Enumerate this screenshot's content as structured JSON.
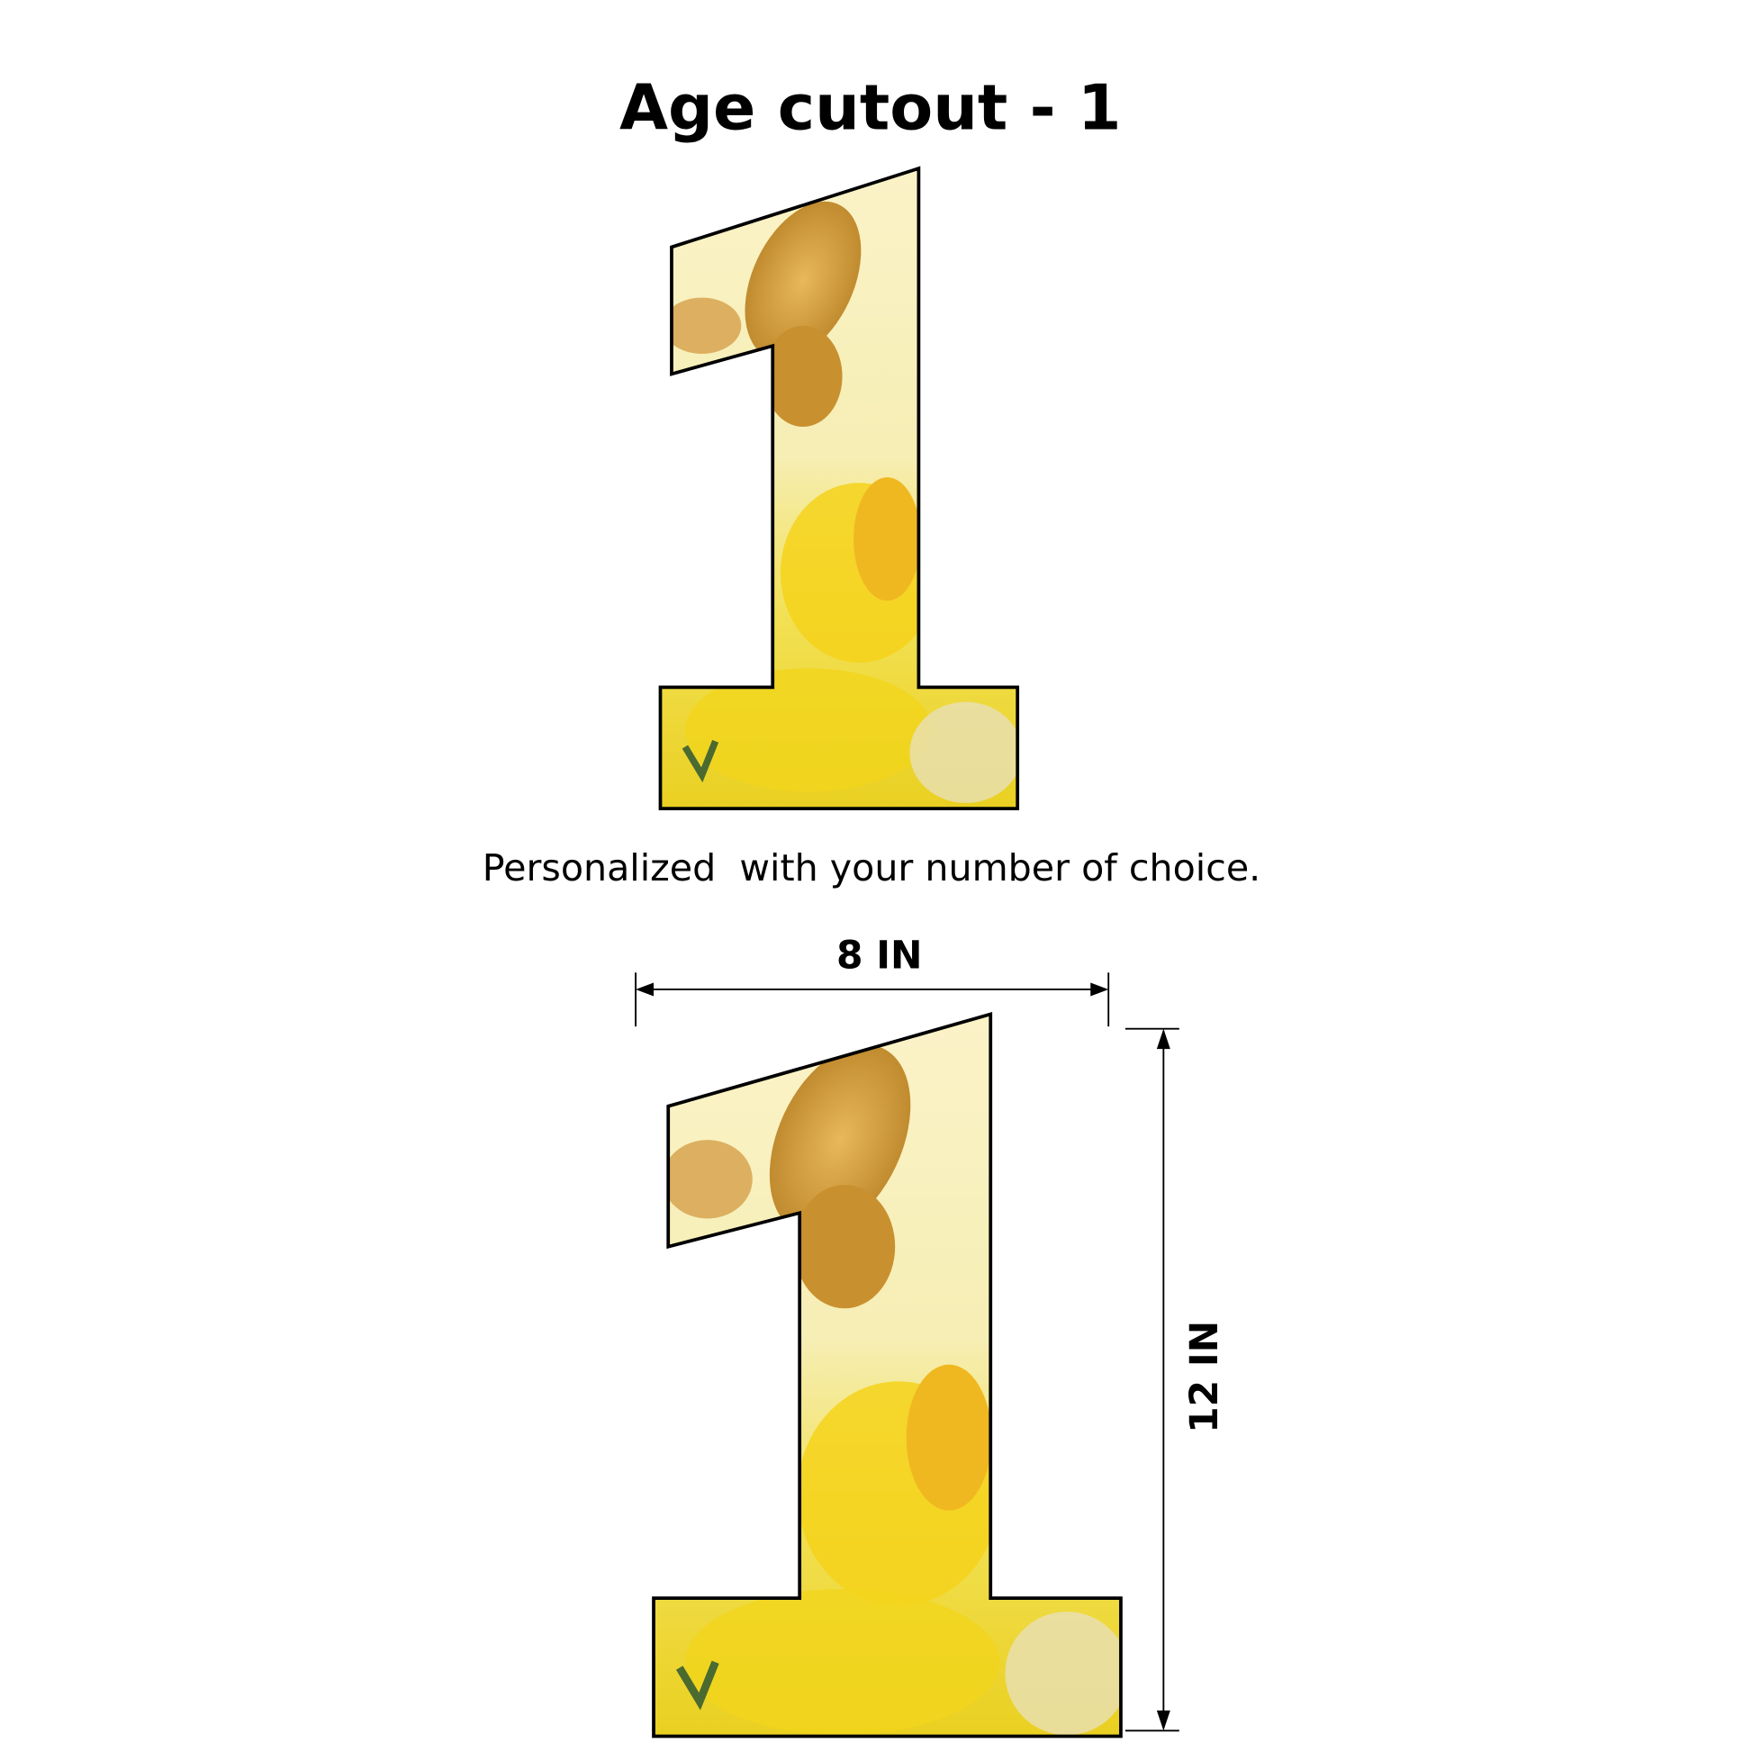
{
  "title": "Age cutout - 1",
  "subtitle": "Personalized  with your number of choice.",
  "dimensions": {
    "width_label": "8 IN",
    "height_label": "12 IN"
  },
  "colors": {
    "background": "#fffbd6",
    "gold": "#d9a531",
    "yellow": "#f5dc1e",
    "outline": "#000000"
  }
}
